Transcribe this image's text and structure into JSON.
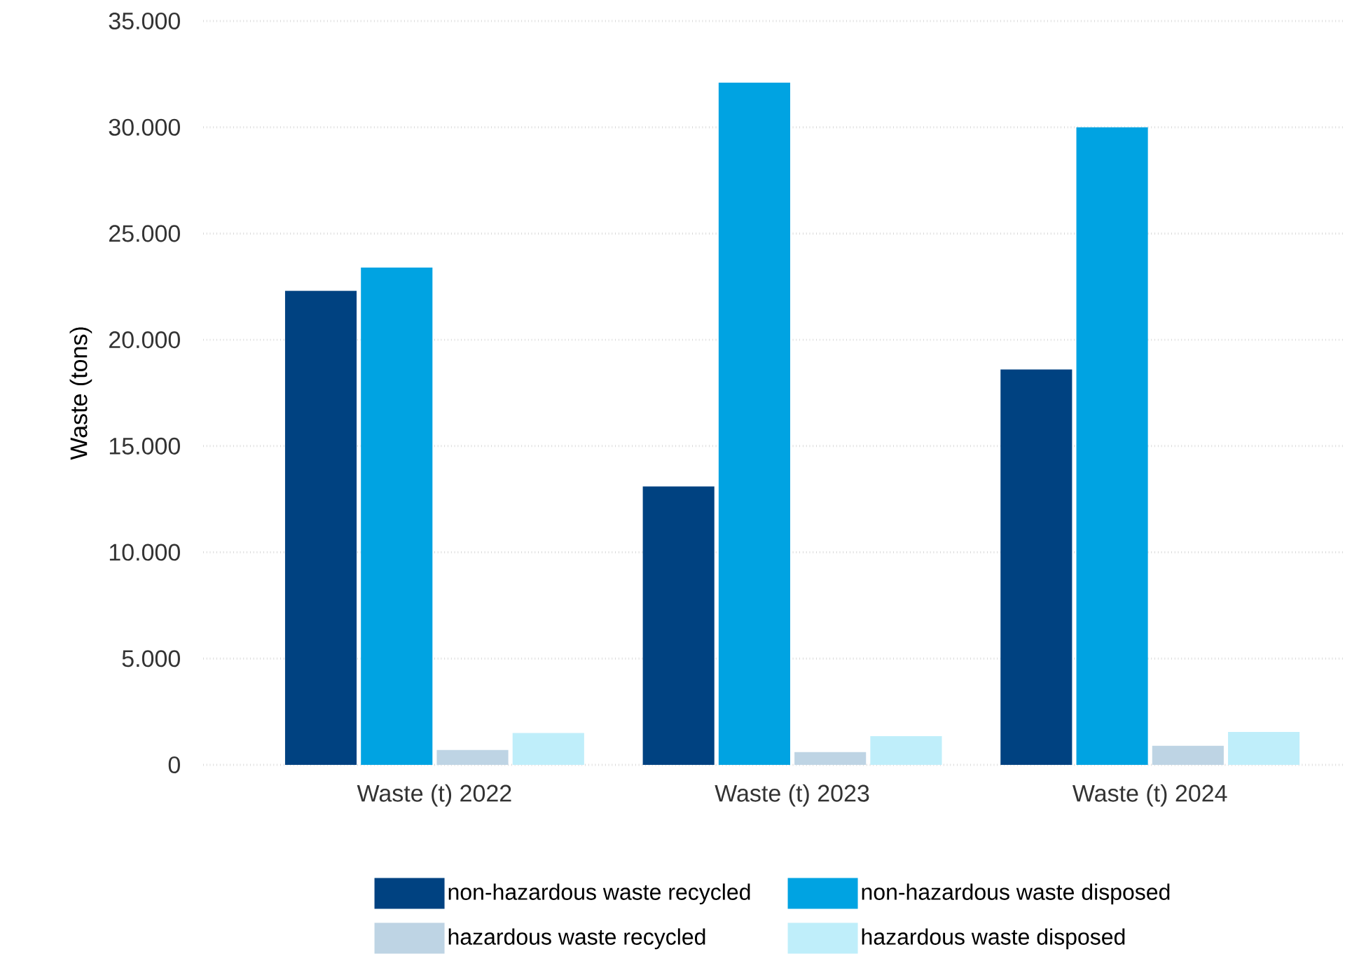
{
  "chart_data": {
    "type": "bar",
    "ylabel": "Waste (tons)",
    "categories": [
      "Waste (t) 2022",
      "Waste (t) 2023",
      "Waste (t) 2024"
    ],
    "series": [
      {
        "name": "non-hazardous waste recycled",
        "color": "#004281",
        "values": [
          22300,
          13100,
          18600
        ]
      },
      {
        "name": "non-hazardous waste disposed",
        "color": "#00a3e2",
        "values": [
          23400,
          32100,
          30000
        ]
      },
      {
        "name": "hazardous waste recycled",
        "color": "#bed4e4",
        "values": [
          700,
          600,
          900
        ]
      },
      {
        "name": "hazardous waste disposed",
        "color": "#bfeefa",
        "values": [
          1500,
          1350,
          1550
        ]
      }
    ],
    "ylim": [
      0,
      35000
    ],
    "yticks": [
      0,
      {
        "value": 5000,
        "label": "5.000"
      },
      {
        "value": 10000,
        "label": "10.000"
      },
      {
        "value": 15000,
        "label": "15.000"
      },
      {
        "value": 20000,
        "label": "20.000"
      },
      {
        "value": 25000,
        "label": "25.000"
      },
      {
        "value": 30000,
        "label": "30.000"
      },
      {
        "value": 35000,
        "label": "35.000"
      }
    ],
    "grid": "y",
    "legend": "bottom"
  }
}
